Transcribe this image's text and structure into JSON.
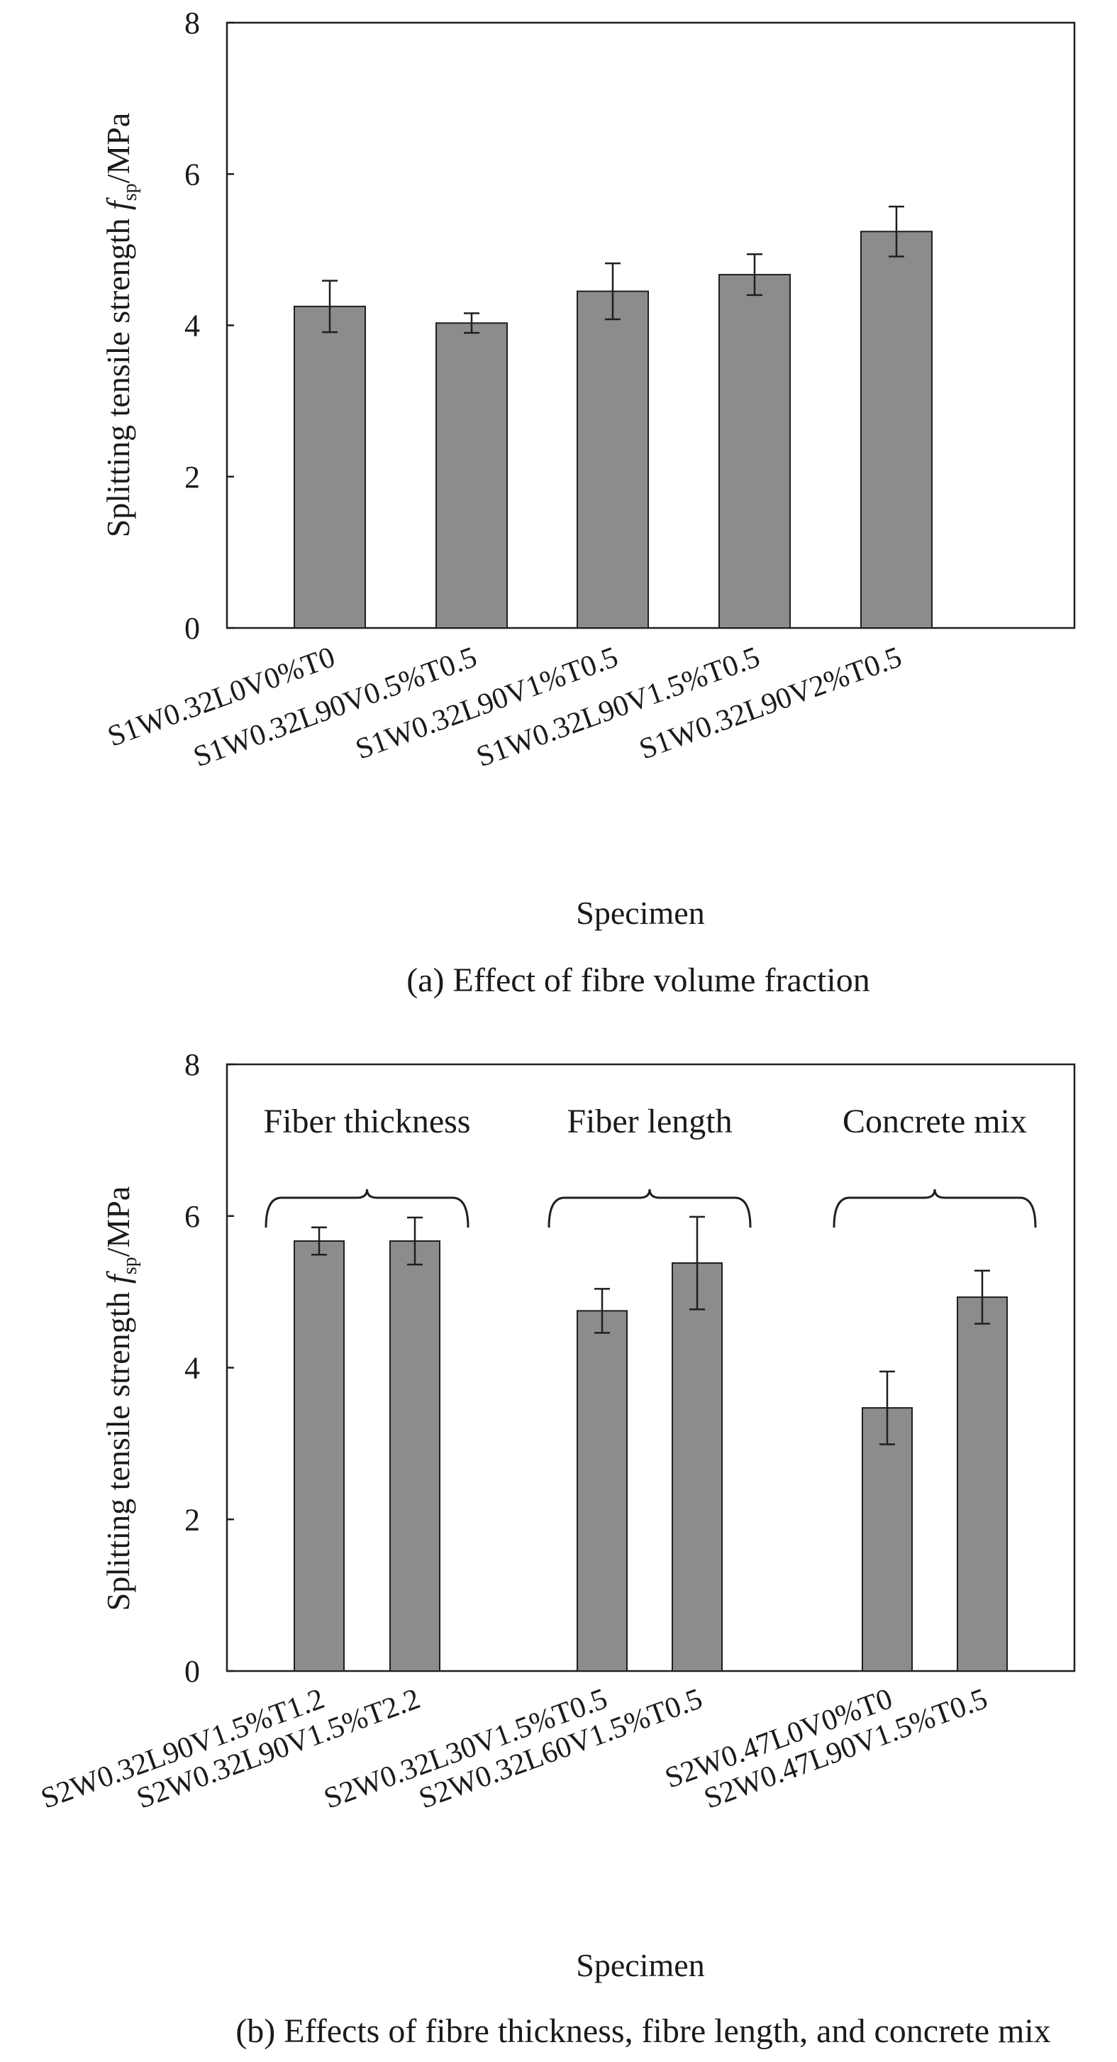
{
  "chart_data": [
    {
      "id": "a",
      "type": "bar",
      "caption": "(a) Effect of fibre volume fraction",
      "xlabel": "Specimen",
      "ylabel_main": "Splitting tensile strength ",
      "ylabel_var": "f",
      "ylabel_sub": "sp",
      "ylabel_unit": "/MPa",
      "ylim": [
        0,
        8
      ],
      "yticks": [
        "0",
        "2",
        "4",
        "6",
        "8"
      ],
      "categories": [
        "S1W0.32L0V0%T0",
        "S1W0.32L90V0.5%T0.5",
        "S1W0.32L90V1%T0.5",
        "S1W0.32L90V1.5%T0.5",
        "S1W0.32L90V2%T0.5"
      ],
      "values": [
        4.25,
        4.03,
        4.45,
        4.67,
        5.24
      ],
      "errors": [
        0.34,
        0.13,
        0.37,
        0.27,
        0.33
      ],
      "groups": []
    },
    {
      "id": "b",
      "type": "bar",
      "caption": "(b) Effects of fibre thickness, fibre length, and concrete mix",
      "xlabel": "Specimen",
      "ylabel_main": "Splitting tensile strength ",
      "ylabel_var": "f",
      "ylabel_sub": "sp",
      "ylabel_unit": "/MPa",
      "ylim": [
        0,
        8
      ],
      "yticks": [
        "0",
        "2",
        "4",
        "6",
        "8"
      ],
      "categories": [
        "S2W0.32L90V1.5%T1.2",
        "S2W0.32L90V1.5%T2.2",
        "S2W0.32L30V1.5%T0.5",
        "S2W0.32L60V1.5%T0.5",
        "S2W0.47L0V0%T0",
        "S2W0.47L90V1.5%T0.5"
      ],
      "values": [
        5.67,
        5.67,
        4.75,
        5.38,
        3.47,
        4.93
      ],
      "errors": [
        0.18,
        0.31,
        0.29,
        0.61,
        0.48,
        0.35
      ],
      "groups": [
        {
          "label": "Fiber thickness",
          "from": 0,
          "to": 1
        },
        {
          "label": "Fiber length",
          "from": 2,
          "to": 3
        },
        {
          "label": "Concrete mix",
          "from": 4,
          "to": 5
        }
      ]
    }
  ]
}
